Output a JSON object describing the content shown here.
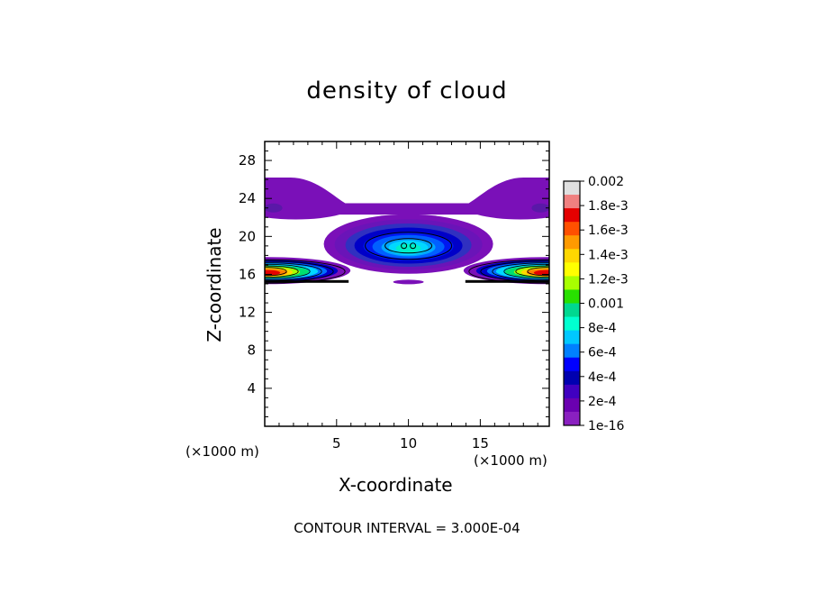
{
  "chart_data": {
    "type": "contour",
    "title": "density of cloud",
    "xlabel": "X-coordinate",
    "ylabel": "Z-coordinate",
    "x_unit_label": "(×1000 m)",
    "xlim": [
      0,
      19.8
    ],
    "ylim": [
      0,
      30
    ],
    "x_ticks": [
      5,
      10,
      15
    ],
    "y_ticks": [
      4,
      8,
      12,
      16,
      20,
      24,
      28
    ],
    "footer": "CONTOUR INTERVAL = 3.000E-04",
    "colorbar": {
      "labels": [
        "0.002",
        "1.8e-3",
        "1.6e-3",
        "1.4e-3",
        "1.2e-3",
        "0.001",
        "8e-4",
        "6e-4",
        "4e-4",
        "2e-4",
        "1e-16"
      ],
      "colors": [
        "#e0e0e0",
        "#f08080",
        "#e40000",
        "#ff5000",
        "#ff9a00",
        "#ffd700",
        "#ffff00",
        "#a8ff00",
        "#28e000",
        "#00d890",
        "#00ffd0",
        "#00c8ff",
        "#0080ff",
        "#0000ff",
        "#0000b0",
        "#4000c0",
        "#6a00b0",
        "#8a20c0"
      ]
    },
    "regions": [
      {
        "name": "upper cloud band",
        "x_range": [
          0,
          19.8
        ],
        "z_range": [
          22.3,
          26.2
        ],
        "max_density": 1e-16
      },
      {
        "name": "central cloud core",
        "center": [
          10,
          19
        ],
        "max_density": 0.0006
      },
      {
        "name": "left lower cloud",
        "center": [
          1.5,
          16.3
        ],
        "max_density": 0.002
      },
      {
        "name": "right lower cloud",
        "center": [
          18.3,
          16.3
        ],
        "max_density": 0.002
      },
      {
        "name": "small patch",
        "center": [
          10,
          15.2
        ],
        "max_density": 1e-16
      }
    ]
  }
}
